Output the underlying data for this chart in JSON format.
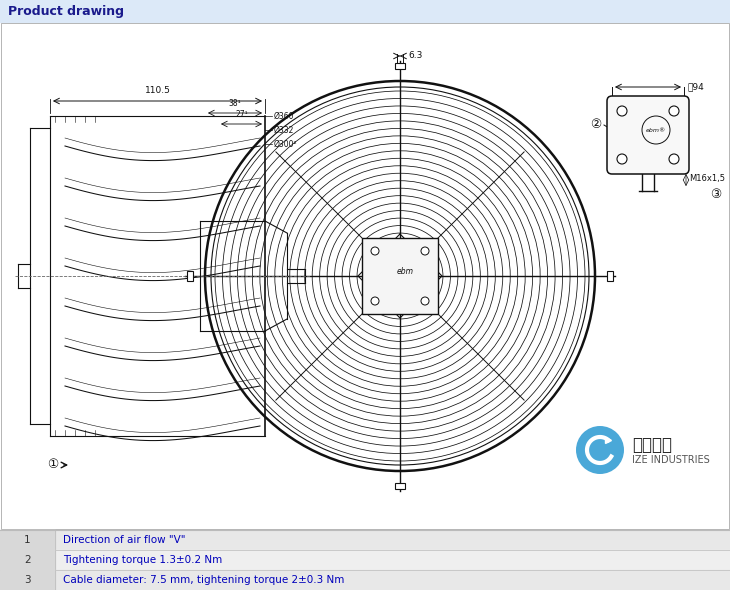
{
  "title": "Product drawing",
  "title_bg": "#dce9f8",
  "title_color": "#1a1a8c",
  "title_fontsize": 9,
  "bg_color": "#ffffff",
  "table_bg_odd": "#e8e8e8",
  "table_bg_even": "#efefef",
  "table_border": "#bbbbbb",
  "table_rows": [
    {
      "num": "1",
      "text": "Direction of air flow \"V\""
    },
    {
      "num": "2",
      "text": "Tightening torque 1.3±0.2 Nm"
    },
    {
      "num": "3",
      "text": "Cable diameter: 7.5 mm, tightening torque 2±0.3 Nm"
    }
  ],
  "table_num_color": "#333333",
  "table_text_color": "#0000bb",
  "dim_color": "#111111",
  "line_color": "#111111",
  "drawing_color": "#111111",
  "logo_blue": "#4aa8d8",
  "logo_text": "爱澡工业",
  "logo_sub": "IZE INDUSTRIES",
  "draw_area_border": "#888888"
}
